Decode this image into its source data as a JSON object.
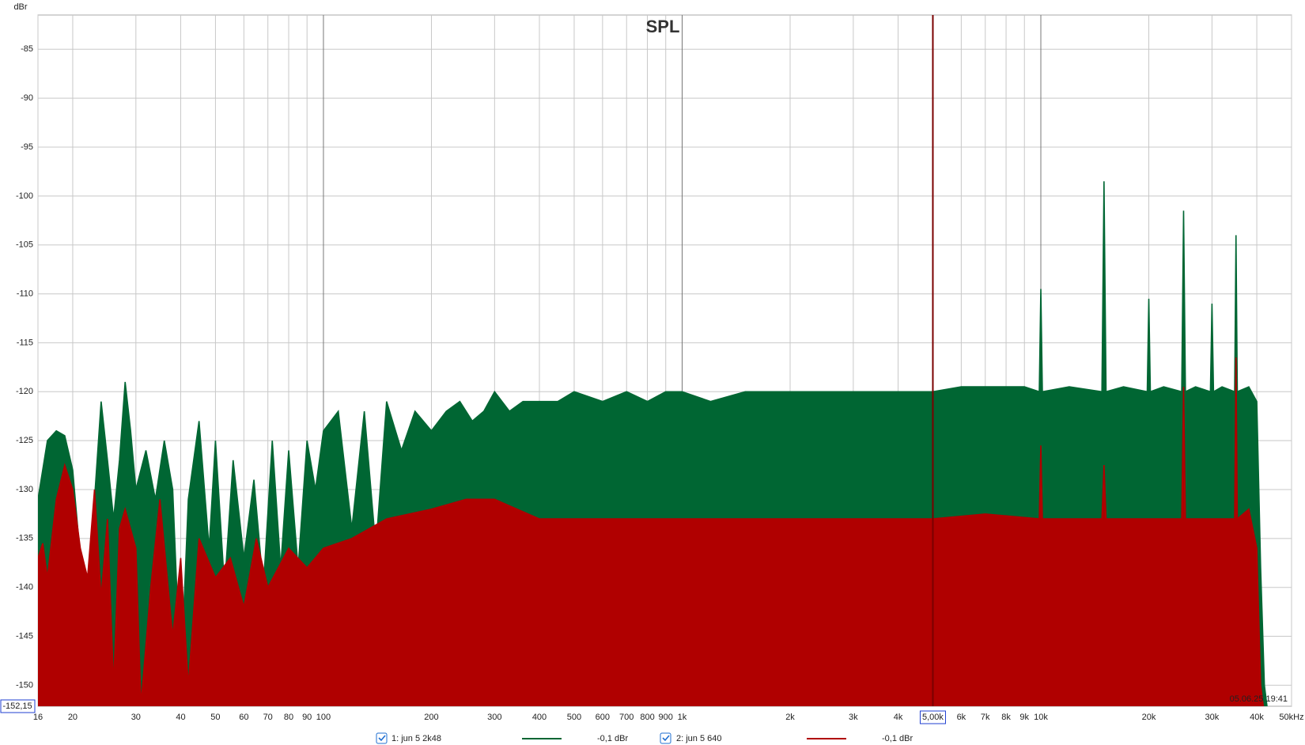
{
  "chart_data": {
    "type": "area",
    "title": "SPL",
    "ylabel": "dBr",
    "timestamp": "05.06.25 19:41",
    "xscale": "log",
    "grid": true,
    "xlim": [
      16,
      50000
    ],
    "ylim": [
      -152.15,
      -81.5
    ],
    "yticks": [
      -85,
      -90,
      -95,
      -100,
      -105,
      -110,
      -115,
      -120,
      -125,
      -130,
      -135,
      -140,
      -145,
      -150
    ],
    "xticks": [
      16,
      20,
      30,
      40,
      50,
      60,
      70,
      80,
      90,
      100,
      200,
      300,
      400,
      500,
      600,
      700,
      800,
      900,
      {
        "value": 1000,
        "label": "1k"
      },
      {
        "value": 2000,
        "label": "2k"
      },
      {
        "value": 3000,
        "label": "3k"
      },
      {
        "value": 4000,
        "label": "4k"
      },
      {
        "value": 6000,
        "label": "6k"
      },
      {
        "value": 7000,
        "label": "7k"
      },
      {
        "value": 8000,
        "label": "8k"
      },
      {
        "value": 9000,
        "label": "9k"
      },
      {
        "value": 10000,
        "label": "10k"
      },
      {
        "value": 20000,
        "label": "20k"
      },
      {
        "value": 30000,
        "label": "30k"
      },
      {
        "value": 40000,
        "label": "40k"
      },
      {
        "value": 50000,
        "label": "50kHz"
      }
    ],
    "cursor": {
      "x": {
        "value": 5000,
        "label": "5,00k"
      },
      "y": {
        "value": -152.15,
        "label": "-152,15"
      },
      "color": "#7a0000"
    },
    "series": [
      {
        "name": "1: jun 5 2k48",
        "legend_value": "-0,1 dBr",
        "color": "#006633",
        "x": [
          16,
          17,
          18,
          19,
          20,
          21,
          22,
          23,
          24,
          25,
          26,
          27,
          28,
          29,
          30,
          32,
          34,
          36,
          38,
          40,
          42,
          45,
          48,
          50,
          53,
          56,
          60,
          64,
          68,
          72,
          76,
          80,
          85,
          90,
          95,
          100,
          110,
          120,
          130,
          140,
          150,
          165,
          180,
          200,
          220,
          240,
          260,
          280,
          300,
          330,
          360,
          400,
          450,
          500,
          600,
          700,
          800,
          900,
          1000,
          1200,
          1500,
          2000,
          2500,
          3000,
          4000,
          5000,
          6000,
          7000,
          8000,
          9000,
          9900,
          10000,
          10100,
          12000,
          14800,
          15000,
          15200,
          17000,
          19800,
          20000,
          20200,
          22000,
          24700,
          25000,
          25300,
          27000,
          29700,
          30000,
          30300,
          32000,
          34700,
          35000,
          35300,
          38000,
          40000,
          41000,
          42000,
          43000
        ],
        "values": [
          -131,
          -125,
          -124,
          -124.5,
          -128,
          -137,
          -146,
          -131,
          -121,
          -127,
          -133,
          -127,
          -119,
          -124,
          -130,
          -126,
          -131,
          -125,
          -130,
          -150,
          -131,
          -123,
          -136,
          -125,
          -140,
          -127,
          -137,
          -129,
          -140,
          -125,
          -138,
          -126,
          -138,
          -125,
          -130,
          -124,
          -122,
          -134,
          -122,
          -136,
          -121,
          -126,
          -122,
          -124,
          -122,
          -121,
          -123,
          -122,
          -120,
          -122,
          -121,
          -121,
          -121,
          -120,
          -121,
          -120,
          -121,
          -120,
          -120,
          -121,
          -120,
          -120,
          -120,
          -120,
          -120,
          -120,
          -119.5,
          -119.5,
          -119.5,
          -119.5,
          -120,
          -109.5,
          -120,
          -119.5,
          -120,
          -98.5,
          -120,
          -119.5,
          -120,
          -110.5,
          -120,
          -119.5,
          -120,
          -101.5,
          -120,
          -119.5,
          -120,
          -111,
          -120,
          -119.5,
          -120,
          -104,
          -120,
          -119.5,
          -121,
          -138,
          -150,
          -153
        ]
      },
      {
        "name": "2: jun 5 640",
        "legend_value": "-0,1 dBr",
        "color": "#b00000",
        "x": [
          16,
          16.5,
          17,
          18,
          19,
          20,
          21,
          22,
          23,
          24,
          25,
          26,
          27,
          28,
          30,
          31,
          33,
          35,
          38,
          40,
          42,
          45,
          50,
          55,
          60,
          65,
          70,
          80,
          90,
          100,
          120,
          150,
          200,
          250,
          300,
          400,
          500,
          700,
          1000,
          2000,
          3000,
          5000,
          7000,
          9900,
          10000,
          10100,
          14800,
          15000,
          15200,
          24700,
          25000,
          25300,
          34700,
          35000,
          35300,
          38000,
          40000,
          41000,
          42000
        ],
        "values": [
          -137,
          -135.5,
          -139,
          -131,
          -127.5,
          -130,
          -136,
          -139,
          -130,
          -141,
          -133,
          -150,
          -134,
          -132,
          -136,
          -152,
          -140,
          -131,
          -145,
          -137,
          -150,
          -135,
          -139,
          -137,
          -142,
          -135,
          -140,
          -136,
          -138,
          -136,
          -135,
          -133,
          -132,
          -131,
          -131,
          -133,
          -133,
          -133,
          -133,
          -133,
          -133,
          -133,
          -132.5,
          -133,
          -125.5,
          -133,
          -133,
          -127.5,
          -133,
          -133,
          -119.5,
          -133,
          -133,
          -116.5,
          -133,
          -132,
          -136,
          -150,
          -153
        ]
      }
    ]
  }
}
